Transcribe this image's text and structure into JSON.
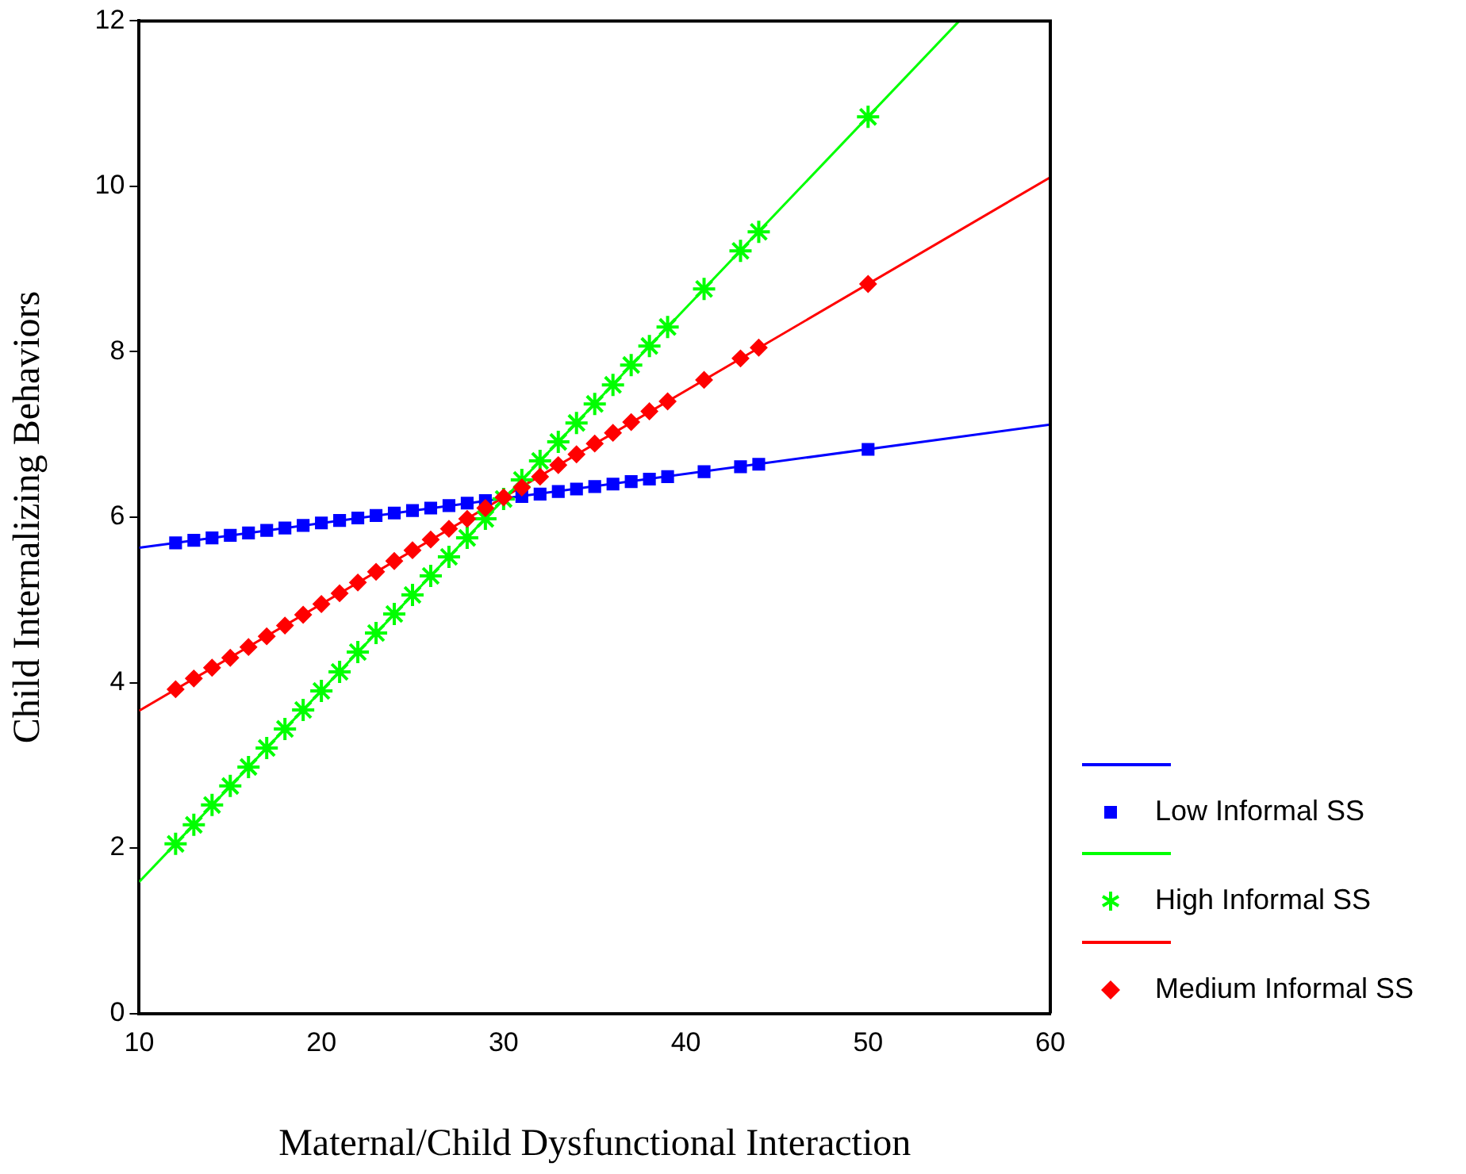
{
  "chart_data": {
    "type": "scatter",
    "xlabel": "Maternal/Child Dysfunctional Interaction",
    "ylabel": "Child Internalizing Behaviors",
    "x": [
      12,
      13,
      14,
      15,
      16,
      17,
      18,
      19,
      20,
      21,
      22,
      23,
      24,
      25,
      26,
      27,
      28,
      29,
      30,
      31,
      32,
      33,
      34,
      35,
      36,
      37,
      38,
      39,
      41,
      43,
      44,
      50
    ],
    "xlim": [
      10,
      60
    ],
    "xticks": [
      10,
      20,
      30,
      40,
      50,
      60
    ],
    "ylim": [
      0,
      12
    ],
    "yticks": [
      0,
      2,
      4,
      6,
      8,
      10,
      12
    ],
    "grid": false,
    "legend": "bottom right",
    "series": [
      {
        "name": "Low Informal SS",
        "color": "#0000ff",
        "marker": "square",
        "values": [
          5.69,
          5.72,
          5.75,
          5.78,
          5.81,
          5.84,
          5.87,
          5.9,
          5.93,
          5.96,
          5.99,
          6.02,
          6.05,
          6.08,
          6.11,
          6.14,
          6.17,
          6.2,
          null,
          6.25,
          6.28,
          6.31,
          6.34,
          6.37,
          6.4,
          6.43,
          6.46,
          6.49,
          6.55,
          6.61,
          6.64,
          6.82
        ]
      },
      {
        "type": "line",
        "color": "#0000ff",
        "marker": "none",
        "x": [
          10,
          60
        ],
        "values": [
          5.63,
          7.12
        ]
      },
      {
        "name": "High Informal SS",
        "color": "#00ff00",
        "marker": "cross",
        "values": [
          2.05,
          2.28,
          2.52,
          2.75,
          2.98,
          3.21,
          3.44,
          3.67,
          3.9,
          4.13,
          4.37,
          4.6,
          4.83,
          5.06,
          5.29,
          5.52,
          5.75,
          5.98,
          6.22,
          6.45,
          6.68,
          6.91,
          7.14,
          7.37,
          7.6,
          7.84,
          8.07,
          8.3,
          8.76,
          9.22,
          9.45,
          10.84
        ]
      },
      {
        "type": "line",
        "color": "#00ff00",
        "marker": "none",
        "x": [
          10,
          55
        ],
        "values": [
          1.59,
          12
        ]
      },
      {
        "name": "Medium Informal SS",
        "color": "#ff0000",
        "marker": "diamond",
        "values": [
          3.92,
          4.05,
          4.18,
          4.3,
          4.43,
          4.56,
          4.69,
          4.82,
          4.95,
          5.08,
          5.21,
          5.34,
          5.47,
          5.6,
          5.73,
          5.86,
          5.98,
          6.11,
          6.24,
          6.36,
          6.49,
          6.63,
          6.76,
          6.89,
          7.02,
          7.15,
          7.28,
          7.4,
          7.66,
          7.92,
          8.05,
          8.82
        ]
      },
      {
        "type": "line",
        "color": "#ff0000",
        "marker": "none",
        "x": [
          10,
          60
        ],
        "values": [
          3.66,
          10.11
        ]
      }
    ]
  }
}
